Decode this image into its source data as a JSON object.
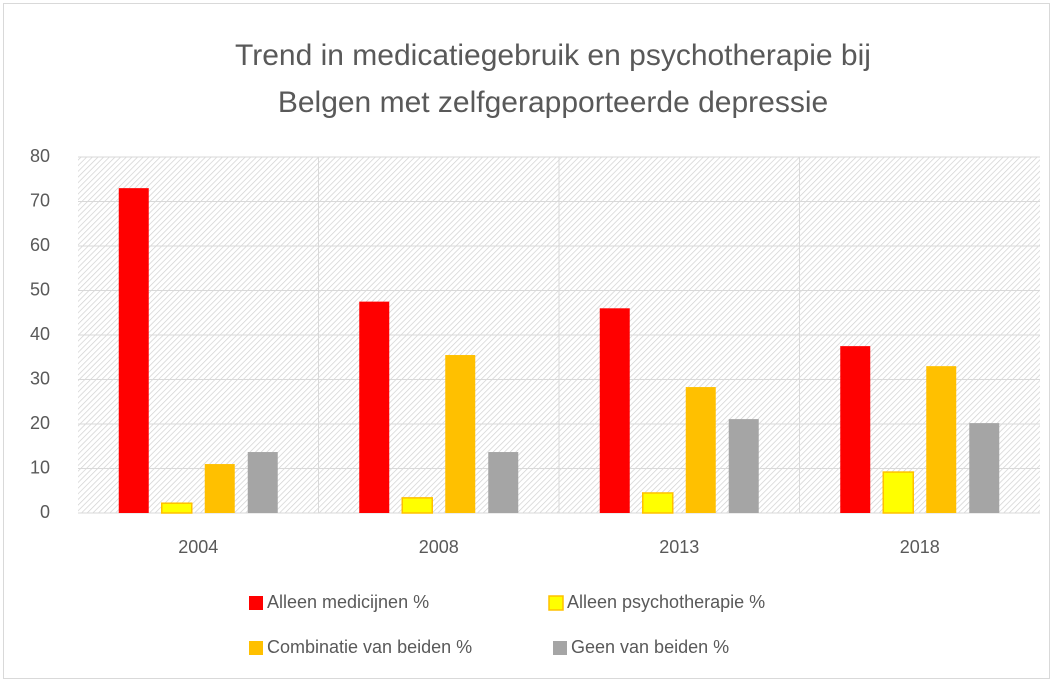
{
  "chart_data": {
    "type": "bar",
    "title": [
      "Trend in medicatiegebruik en psychotherapie bij",
      "Belgen met zelfgerapporteerde depressie"
    ],
    "categories": [
      "2004",
      "2008",
      "2013",
      "2018"
    ],
    "series": [
      {
        "name": "Alleen medicijnen %",
        "color": "#ff0000",
        "values": [
          73,
          47.5,
          46,
          37.5
        ]
      },
      {
        "name": "Alleen psychotherapie %",
        "color": "#ffff00",
        "values": [
          2.2,
          3.4,
          4.5,
          9.2
        ]
      },
      {
        "name": "Combinatie van beiden %",
        "color": "#ffc000",
        "values": [
          11,
          35.5,
          28.3,
          33
        ]
      },
      {
        "name": "Geen van beiden %",
        "color": "#a5a5a5",
        "values": [
          13.7,
          13.7,
          21.1,
          20.2
        ]
      }
    ],
    "ylim": [
      0,
      80
    ],
    "yticks": [
      0,
      10,
      20,
      30,
      40,
      50,
      60,
      70,
      80
    ],
    "grid": true,
    "legend": "bottom"
  }
}
